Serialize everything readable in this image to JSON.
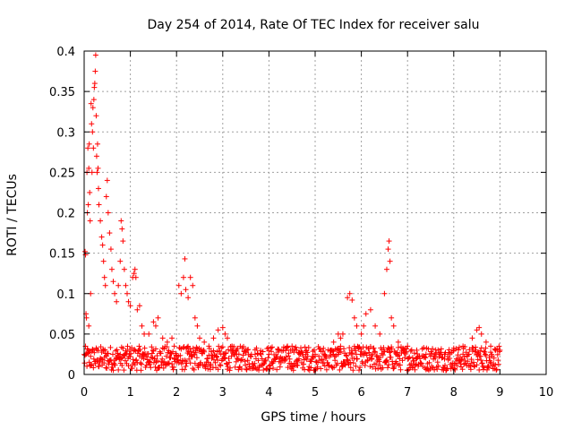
{
  "chart_data": {
    "type": "scatter",
    "title": "Day 254 of 2014, Rate Of TEC Index for receiver salu",
    "xlabel": "GPS time / hours",
    "ylabel": "ROTI / TECUs",
    "xlim": [
      0,
      10
    ],
    "ylim": [
      0,
      0.4
    ],
    "xticks": [
      0,
      1,
      2,
      3,
      4,
      5,
      6,
      7,
      8,
      9,
      10
    ],
    "yticks": [
      0,
      0.05,
      0.1,
      0.15,
      0.2,
      0.25,
      0.3,
      0.35,
      0.4
    ],
    "ytick_labels": [
      "0",
      "0.05",
      "0.1",
      "0.15",
      "0.2",
      "0.25",
      "0.3",
      "0.35",
      "0.4"
    ],
    "grid": true,
    "marker": "+",
    "marker_color": "#ff0000",
    "series": [
      {
        "name": "ROTI",
        "points": [
          [
            0.02,
            0.152
          ],
          [
            0.03,
            0.148
          ],
          [
            0.04,
            0.075
          ],
          [
            0.05,
            0.07
          ],
          [
            0.06,
            0.25
          ],
          [
            0.07,
            0.2
          ],
          [
            0.08,
            0.28
          ],
          [
            0.09,
            0.21
          ],
          [
            0.1,
            0.255
          ],
          [
            0.1,
            0.06
          ],
          [
            0.11,
            0.285
          ],
          [
            0.12,
            0.225
          ],
          [
            0.13,
            0.19
          ],
          [
            0.14,
            0.1
          ],
          [
            0.15,
            0.335
          ],
          [
            0.16,
            0.31
          ],
          [
            0.17,
            0.25
          ],
          [
            0.18,
            0.3
          ],
          [
            0.19,
            0.33
          ],
          [
            0.2,
            0.28
          ],
          [
            0.21,
            0.34
          ],
          [
            0.22,
            0.355
          ],
          [
            0.23,
            0.36
          ],
          [
            0.24,
            0.375
          ],
          [
            0.25,
            0.395
          ],
          [
            0.26,
            0.32
          ],
          [
            0.27,
            0.27
          ],
          [
            0.28,
            0.25
          ],
          [
            0.29,
            0.285
          ],
          [
            0.3,
            0.255
          ],
          [
            0.31,
            0.23
          ],
          [
            0.32,
            0.21
          ],
          [
            0.35,
            0.19
          ],
          [
            0.38,
            0.17
          ],
          [
            0.4,
            0.16
          ],
          [
            0.42,
            0.14
          ],
          [
            0.44,
            0.12
          ],
          [
            0.46,
            0.11
          ],
          [
            0.48,
            0.22
          ],
          [
            0.5,
            0.24
          ],
          [
            0.52,
            0.2
          ],
          [
            0.55,
            0.175
          ],
          [
            0.58,
            0.155
          ],
          [
            0.6,
            0.13
          ],
          [
            0.63,
            0.115
          ],
          [
            0.66,
            0.1
          ],
          [
            0.7,
            0.09
          ],
          [
            0.74,
            0.11
          ],
          [
            0.78,
            0.14
          ],
          [
            0.8,
            0.19
          ],
          [
            0.82,
            0.18
          ],
          [
            0.84,
            0.165
          ],
          [
            0.87,
            0.13
          ],
          [
            0.9,
            0.11
          ],
          [
            0.93,
            0.1
          ],
          [
            0.96,
            0.09
          ],
          [
            1.0,
            0.085
          ],
          [
            1.05,
            0.12
          ],
          [
            1.08,
            0.125
          ],
          [
            1.1,
            0.13
          ],
          [
            1.12,
            0.12
          ],
          [
            1.15,
            0.08
          ],
          [
            1.2,
            0.085
          ],
          [
            1.25,
            0.06
          ],
          [
            1.3,
            0.05
          ],
          [
            1.4,
            0.05
          ],
          [
            1.5,
            0.065
          ],
          [
            1.55,
            0.06
          ],
          [
            1.6,
            0.07
          ],
          [
            1.7,
            0.045
          ],
          [
            1.8,
            0.04
          ],
          [
            1.9,
            0.045
          ],
          [
            1.95,
            0.035
          ],
          [
            2.05,
            0.11
          ],
          [
            2.1,
            0.1
          ],
          [
            2.15,
            0.12
          ],
          [
            2.18,
            0.143
          ],
          [
            2.2,
            0.105
          ],
          [
            2.25,
            0.095
          ],
          [
            2.3,
            0.12
          ],
          [
            2.35,
            0.11
          ],
          [
            2.4,
            0.07
          ],
          [
            2.45,
            0.06
          ],
          [
            2.5,
            0.045
          ],
          [
            2.6,
            0.04
          ],
          [
            2.7,
            0.035
          ],
          [
            2.8,
            0.045
          ],
          [
            2.9,
            0.055
          ],
          [
            3.0,
            0.058
          ],
          [
            3.05,
            0.05
          ],
          [
            3.1,
            0.045
          ],
          [
            3.2,
            0.035
          ],
          [
            3.3,
            0.03
          ],
          [
            3.5,
            0.03
          ],
          [
            3.7,
            0.025
          ],
          [
            4.0,
            0.025
          ],
          [
            4.2,
            0.03
          ],
          [
            4.4,
            0.035
          ],
          [
            4.5,
            0.035
          ],
          [
            4.6,
            0.03
          ],
          [
            4.8,
            0.025
          ],
          [
            5.0,
            0.025
          ],
          [
            5.2,
            0.025
          ],
          [
            5.4,
            0.04
          ],
          [
            5.5,
            0.05
          ],
          [
            5.55,
            0.045
          ],
          [
            5.6,
            0.05
          ],
          [
            5.7,
            0.095
          ],
          [
            5.75,
            0.1
          ],
          [
            5.8,
            0.092
          ],
          [
            5.85,
            0.07
          ],
          [
            5.9,
            0.06
          ],
          [
            6.0,
            0.05
          ],
          [
            6.05,
            0.06
          ],
          [
            6.1,
            0.075
          ],
          [
            6.2,
            0.08
          ],
          [
            6.3,
            0.06
          ],
          [
            6.4,
            0.05
          ],
          [
            6.5,
            0.1
          ],
          [
            6.55,
            0.13
          ],
          [
            6.58,
            0.155
          ],
          [
            6.6,
            0.165
          ],
          [
            6.62,
            0.14
          ],
          [
            6.65,
            0.07
          ],
          [
            6.7,
            0.06
          ],
          [
            6.8,
            0.04
          ],
          [
            7.0,
            0.035
          ],
          [
            7.2,
            0.03
          ],
          [
            7.4,
            0.025
          ],
          [
            7.6,
            0.025
          ],
          [
            7.8,
            0.025
          ],
          [
            8.0,
            0.03
          ],
          [
            8.2,
            0.035
          ],
          [
            8.4,
            0.045
          ],
          [
            8.5,
            0.055
          ],
          [
            8.55,
            0.058
          ],
          [
            8.6,
            0.05
          ],
          [
            8.7,
            0.04
          ],
          [
            8.8,
            0.035
          ],
          [
            8.9,
            0.03
          ],
          [
            9.0,
            0.03
          ]
        ],
        "dense_band": {
          "x_range": [
            0,
            9
          ],
          "baseline_y": 0.02,
          "spread_y": [
            0.005,
            0.035
          ],
          "note": "continuous band of low ROTI values across the day"
        }
      }
    ]
  }
}
